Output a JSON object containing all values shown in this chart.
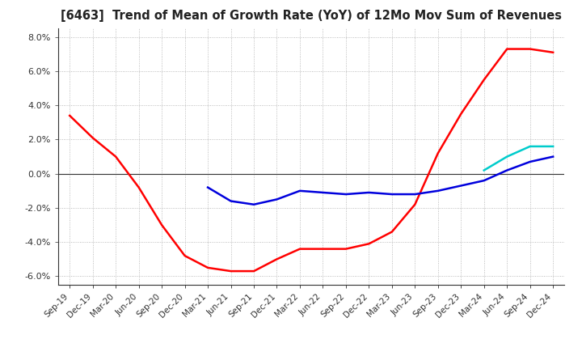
{
  "title": "[6463]  Trend of Mean of Growth Rate (YoY) of 12Mo Mov Sum of Revenues",
  "ylim": [
    -0.065,
    0.085
  ],
  "yticks": [
    -0.06,
    -0.04,
    -0.02,
    0.0,
    0.02,
    0.04,
    0.06,
    0.08
  ],
  "background_color": "#ffffff",
  "grid_color": "#aaaaaa",
  "x_labels": [
    "Sep-19",
    "Dec-19",
    "Mar-20",
    "Jun-20",
    "Sep-20",
    "Dec-20",
    "Mar-21",
    "Jun-21",
    "Sep-21",
    "Dec-21",
    "Mar-22",
    "Jun-22",
    "Sep-22",
    "Dec-22",
    "Mar-23",
    "Jun-23",
    "Sep-23",
    "Dec-23",
    "Mar-24",
    "Jun-24",
    "Sep-24",
    "Dec-24"
  ],
  "series": {
    "3 Years": {
      "color": "#ff0000",
      "data": [
        0.034,
        0.021,
        0.01,
        -0.008,
        -0.03,
        -0.048,
        -0.055,
        -0.057,
        -0.057,
        -0.05,
        -0.044,
        -0.044,
        -0.044,
        -0.041,
        -0.034,
        -0.018,
        0.012,
        0.035,
        0.055,
        0.073,
        0.073,
        0.071
      ]
    },
    "5 Years": {
      "color": "#0000dd",
      "data": [
        null,
        null,
        null,
        null,
        null,
        null,
        -0.008,
        -0.016,
        -0.018,
        -0.015,
        -0.01,
        -0.011,
        -0.012,
        -0.011,
        -0.012,
        -0.012,
        -0.01,
        -0.007,
        -0.004,
        0.002,
        0.007,
        0.01
      ]
    },
    "7 Years": {
      "color": "#00cccc",
      "data": [
        null,
        null,
        null,
        null,
        null,
        null,
        null,
        null,
        null,
        null,
        null,
        null,
        null,
        null,
        null,
        null,
        null,
        null,
        0.002,
        0.01,
        0.016,
        0.016
      ]
    },
    "10 Years": {
      "color": "#006600",
      "data": [
        null,
        null,
        null,
        null,
        null,
        null,
        null,
        null,
        null,
        null,
        null,
        null,
        null,
        null,
        null,
        null,
        null,
        null,
        null,
        null,
        null,
        null
      ]
    }
  }
}
